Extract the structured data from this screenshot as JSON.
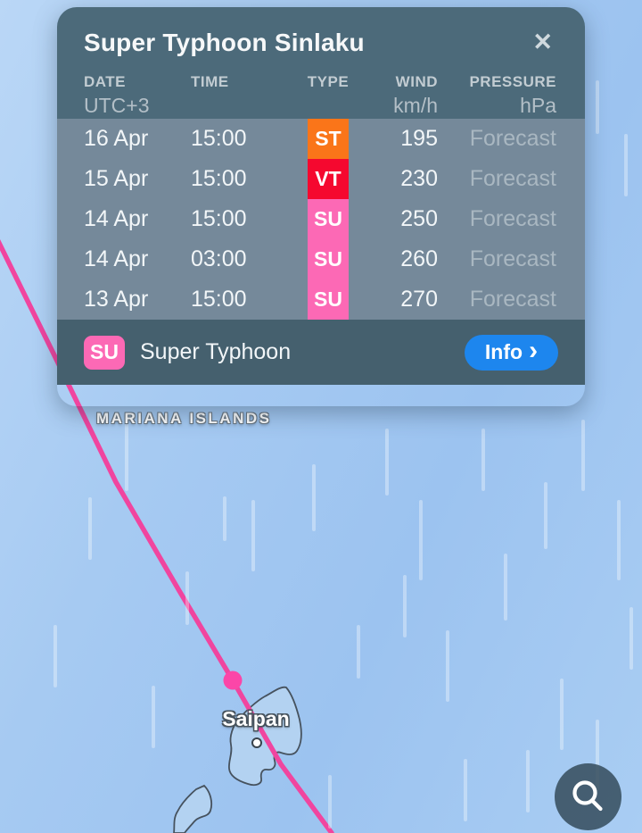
{
  "storm_panel": {
    "title": "Super Typhoon Sinlaku",
    "close_icon": "✕",
    "columns": [
      {
        "label": "DATE",
        "unit": "UTC+3"
      },
      {
        "label": "TIME",
        "unit": ""
      },
      {
        "label": "TYPE",
        "unit": ""
      },
      {
        "label": "WIND",
        "unit": "km/h"
      },
      {
        "label": "PRESSURE",
        "unit": "hPa"
      }
    ],
    "rows": [
      {
        "date": "16 Apr",
        "time": "15:00",
        "type": "ST",
        "type_color": "#fa7519",
        "wind": "195",
        "pressure": "Forecast"
      },
      {
        "date": "15 Apr",
        "time": "15:00",
        "type": "VT",
        "type_color": "#f5082f",
        "wind": "230",
        "pressure": "Forecast"
      },
      {
        "date": "14 Apr",
        "time": "15:00",
        "type": "SU",
        "type_color": "#fc69b5",
        "wind": "250",
        "pressure": "Forecast"
      },
      {
        "date": "14 Apr",
        "time": "03:00",
        "type": "SU",
        "type_color": "#fc69b5",
        "wind": "260",
        "pressure": "Forecast"
      },
      {
        "date": "13 Apr",
        "time": "15:00",
        "type": "SU",
        "type_color": "#fc69b5",
        "wind": "270",
        "pressure": "Forecast"
      }
    ],
    "legend": {
      "badge": "SU",
      "badge_color": "#fc69b5",
      "label": "Super Typhoon"
    },
    "info_button": {
      "label": "Info",
      "chevron": "›",
      "color": "#1d86ee"
    }
  },
  "map": {
    "region_label": "MARIANA ISLANDS",
    "place_label": "Saipan",
    "track_color": "#f0459f",
    "marker_color": "#fb46a8"
  }
}
